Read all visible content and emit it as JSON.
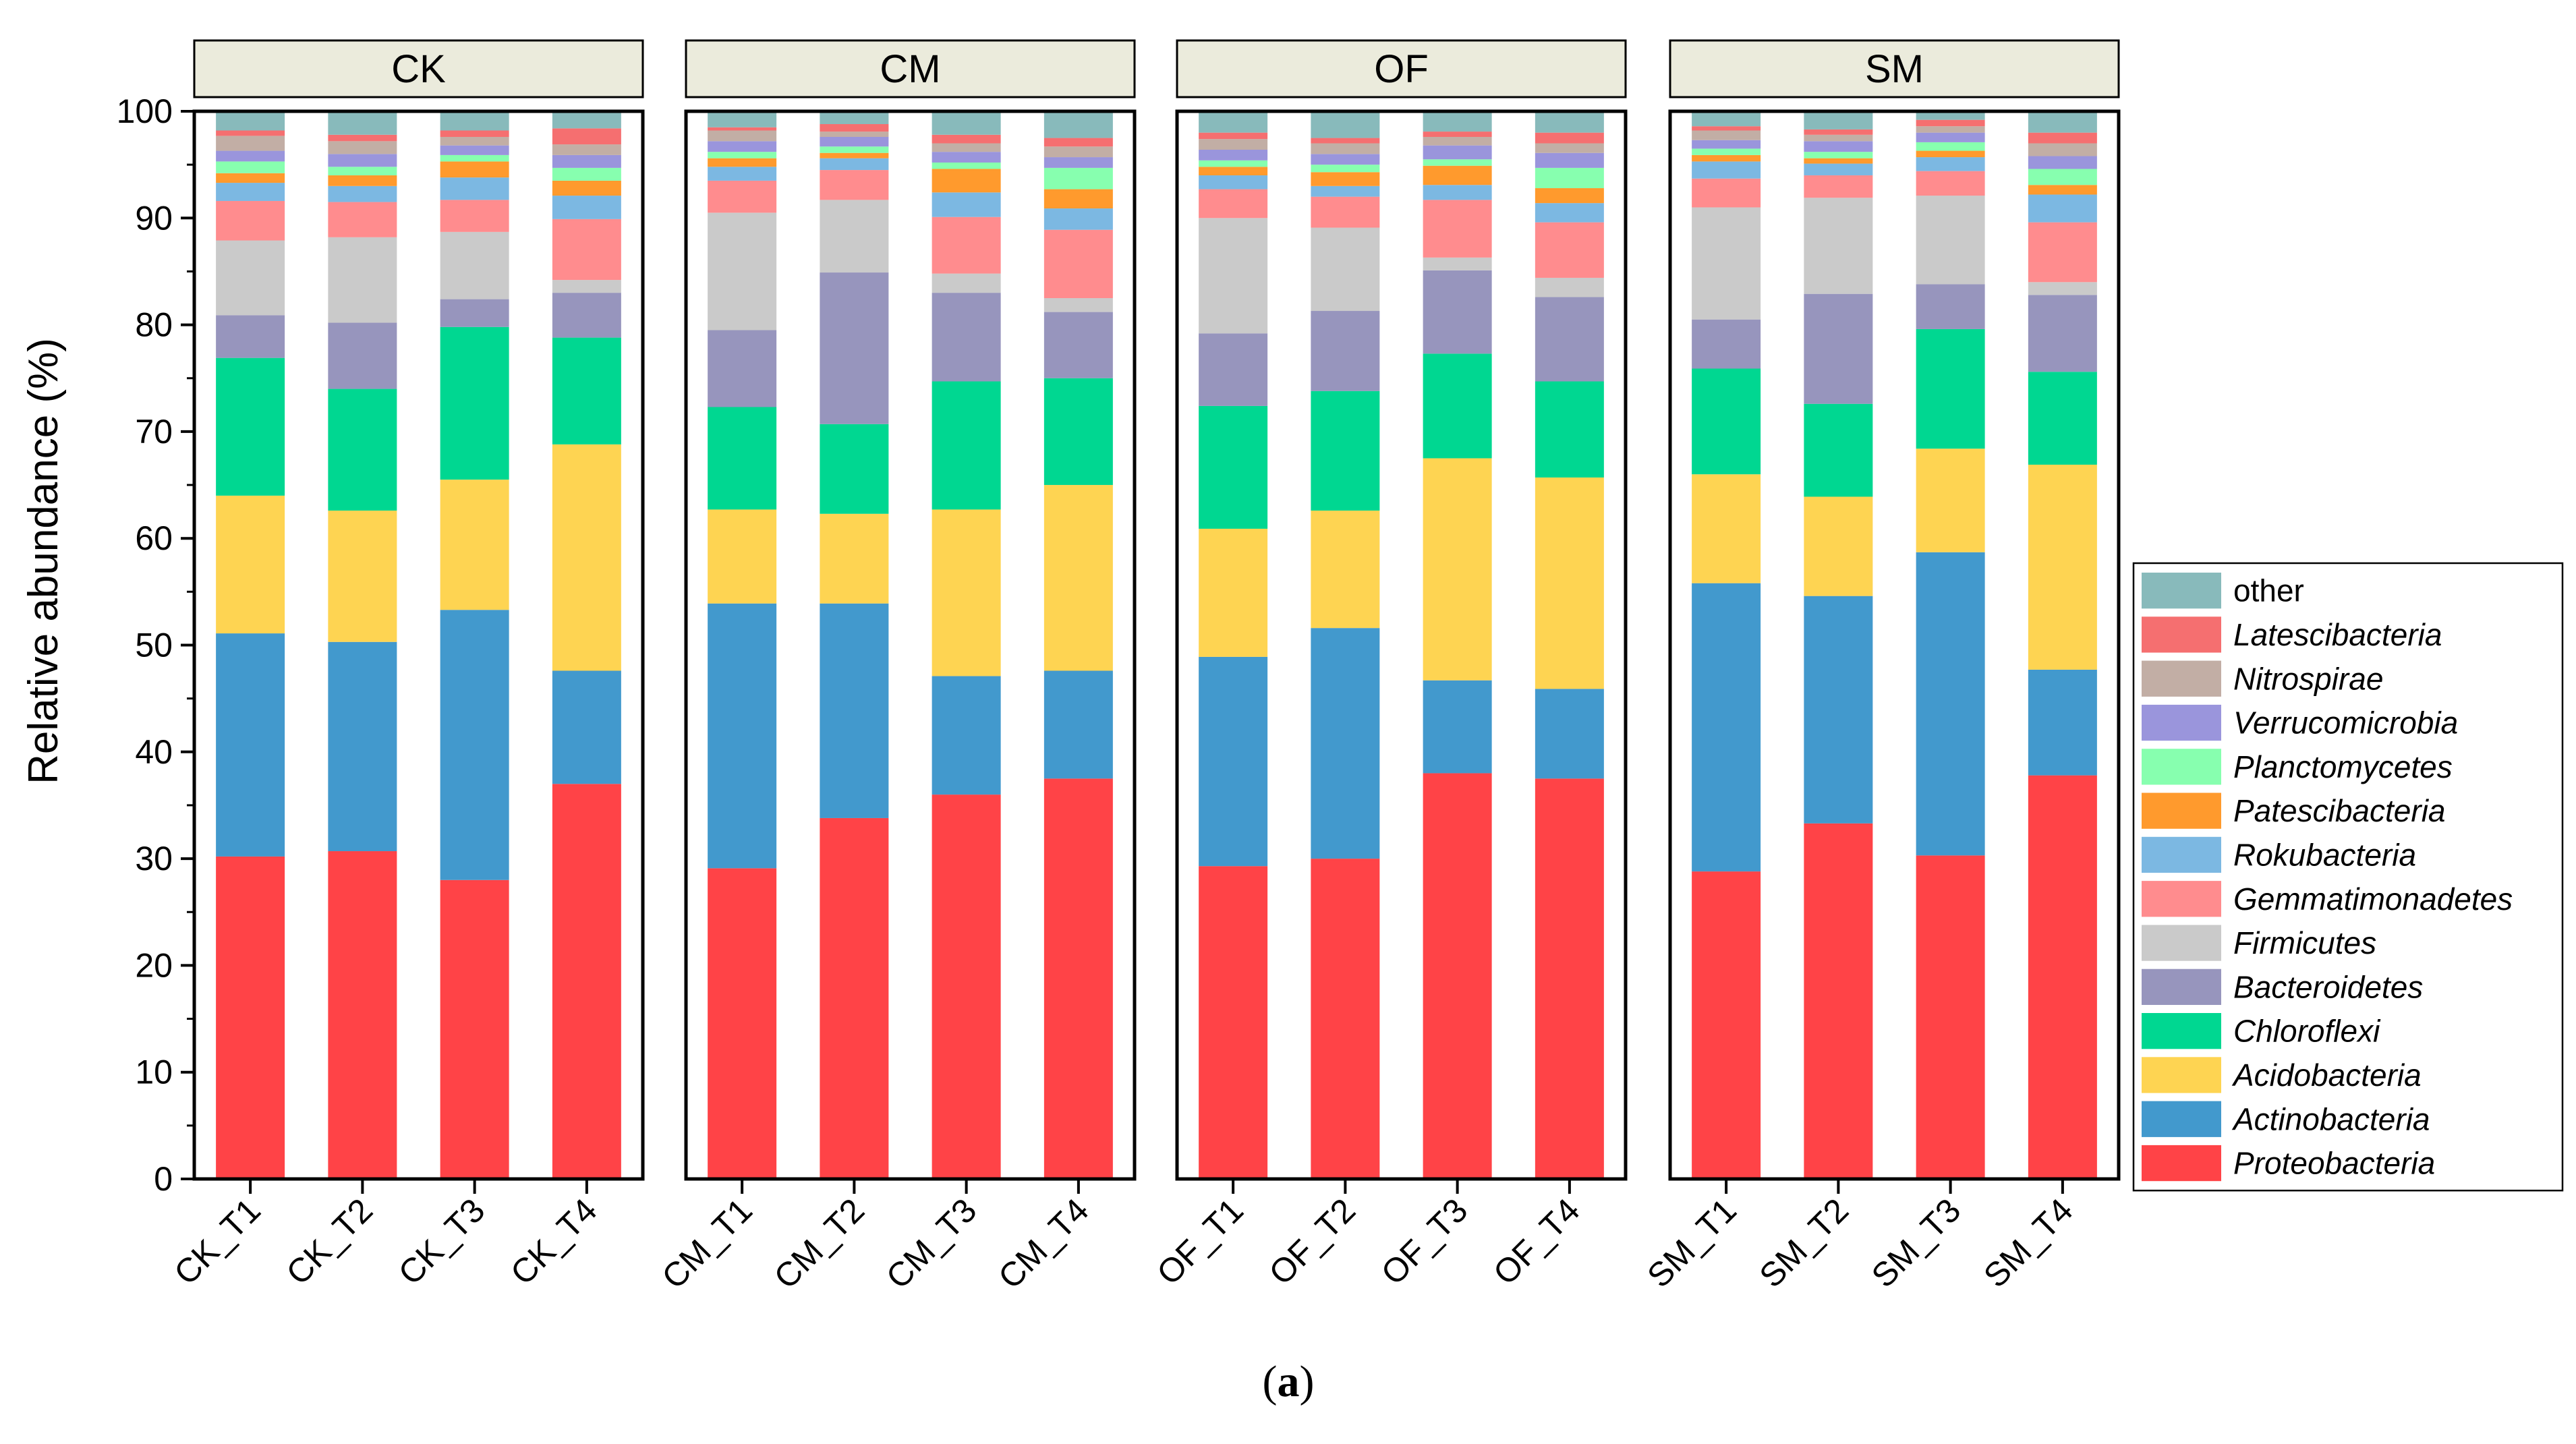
{
  "chart_data": {
    "type": "bar",
    "stacked": true,
    "ylabel": "Relative abundance (%)",
    "ylim": [
      0,
      100
    ],
    "yticks": [
      0,
      10,
      20,
      30,
      40,
      50,
      60,
      70,
      80,
      90,
      100
    ],
    "caption": {
      "open": "(",
      "letter": "a",
      "close": ")"
    },
    "legend_position": "right",
    "legend": [
      "other",
      "Latescibacteria",
      "Nitrospirae",
      "Verrucomicrobia",
      "Planctomycetes",
      "Patescibacteria",
      "Rokubacteria",
      "Gemmatimonadetes",
      "Firmicutes",
      "Bacteroidetes",
      "Chloroflexi",
      "Acidobacteria",
      "Actinobacteria",
      "Proteobacteria"
    ],
    "series_order_bottom_to_top": [
      "Proteobacteria",
      "Actinobacteria",
      "Acidobacteria",
      "Chloroflexi",
      "Bacteroidetes",
      "Firmicutes",
      "Gemmatimonadetes",
      "Rokubacteria",
      "Patescibacteria",
      "Planctomycetes",
      "Verrucomicrobia",
      "Nitrospirae",
      "Latescibacteria",
      "other"
    ],
    "italic": {
      "other": false,
      "Latescibacteria": true,
      "Nitrospirae": true,
      "Verrucomicrobia": true,
      "Planctomycetes": true,
      "Patescibacteria": true,
      "Rokubacteria": true,
      "Gemmatimonadetes": true,
      "Firmicutes": true,
      "Bacteroidetes": true,
      "Chloroflexi": true,
      "Acidobacteria": true,
      "Actinobacteria": true,
      "Proteobacteria": true
    },
    "colors": {
      "Proteobacteria": "#FF4347",
      "Actinobacteria": "#4299CD",
      "Acidobacteria": "#FED452",
      "Chloroflexi": "#00D791",
      "Bacteroidetes": "#9795BD",
      "Firmicutes": "#CACACA",
      "Gemmatimonadetes": "#FF8C8E",
      "Rokubacteria": "#7CB8E2",
      "Patescibacteria": "#FF9A2D",
      "Planctomycetes": "#87FFAF",
      "Verrucomicrobia": "#9A95DC",
      "Nitrospirae": "#C2AEA5",
      "Latescibacteria": "#F56F70",
      "other": "#88BABB"
    },
    "panels": [
      {
        "title": "CK",
        "categories": [
          "CK_T1",
          "CK_T2",
          "CK_T3",
          "CK_T4"
        ],
        "series": [
          {
            "name": "Proteobacteria",
            "values": [
              30.2,
              30.7,
              28.0,
              37.0
            ]
          },
          {
            "name": "Actinobacteria",
            "values": [
              20.9,
              19.6,
              25.3,
              10.6
            ]
          },
          {
            "name": "Acidobacteria",
            "values": [
              12.9,
              12.3,
              12.2,
              21.2
            ]
          },
          {
            "name": "Chloroflexi",
            "values": [
              12.9,
              11.4,
              14.3,
              10.0
            ]
          },
          {
            "name": "Bacteroidetes",
            "values": [
              4.0,
              6.2,
              2.6,
              4.2
            ]
          },
          {
            "name": "Firmicutes",
            "values": [
              7.0,
              8.0,
              6.3,
              1.2
            ]
          },
          {
            "name": "Gemmatimonadetes",
            "values": [
              3.7,
              3.3,
              3.0,
              5.7
            ]
          },
          {
            "name": "Rokubacteria",
            "values": [
              1.7,
              1.5,
              2.1,
              2.2
            ]
          },
          {
            "name": "Patescibacteria",
            "values": [
              0.9,
              1.0,
              1.5,
              1.4
            ]
          },
          {
            "name": "Planctomycetes",
            "values": [
              1.1,
              0.8,
              0.6,
              1.2
            ]
          },
          {
            "name": "Verrucomicrobia",
            "values": [
              1.0,
              1.2,
              0.9,
              1.2
            ]
          },
          {
            "name": "Nitrospirae",
            "values": [
              1.4,
              1.2,
              0.8,
              1.0
            ]
          },
          {
            "name": "Latescibacteria",
            "values": [
              0.5,
              0.6,
              0.6,
              1.5
            ]
          },
          {
            "name": "other",
            "values": [
              1.8,
              2.2,
              1.8,
              1.6
            ]
          }
        ]
      },
      {
        "title": "CM",
        "categories": [
          "CM_T1",
          "CM_T2",
          "CM_T3",
          "CM_T4"
        ],
        "series": [
          {
            "name": "Proteobacteria",
            "values": [
              29.1,
              33.8,
              36.0,
              37.5
            ]
          },
          {
            "name": "Actinobacteria",
            "values": [
              24.8,
              20.1,
              11.1,
              10.1
            ]
          },
          {
            "name": "Acidobacteria",
            "values": [
              8.8,
              8.4,
              15.6,
              17.4
            ]
          },
          {
            "name": "Chloroflexi",
            "values": [
              9.6,
              8.4,
              12.0,
              10.0
            ]
          },
          {
            "name": "Bacteroidetes",
            "values": [
              7.2,
              14.2,
              8.3,
              6.2
            ]
          },
          {
            "name": "Firmicutes",
            "values": [
              11.0,
              6.8,
              1.8,
              1.3
            ]
          },
          {
            "name": "Gemmatimonadetes",
            "values": [
              3.0,
              2.8,
              5.3,
              6.4
            ]
          },
          {
            "name": "Rokubacteria",
            "values": [
              1.3,
              1.1,
              2.3,
              2.0
            ]
          },
          {
            "name": "Patescibacteria",
            "values": [
              0.8,
              0.5,
              2.2,
              1.8
            ]
          },
          {
            "name": "Planctomycetes",
            "values": [
              0.6,
              0.6,
              0.6,
              2.0
            ]
          },
          {
            "name": "Verrucomicrobia",
            "values": [
              1.0,
              0.9,
              1.0,
              1.0
            ]
          },
          {
            "name": "Nitrospirae",
            "values": [
              1.0,
              0.5,
              0.8,
              1.0
            ]
          },
          {
            "name": "Latescibacteria",
            "values": [
              0.3,
              0.7,
              0.8,
              0.8
            ]
          },
          {
            "name": "other",
            "values": [
              1.5,
              1.2,
              2.2,
              2.5
            ]
          }
        ]
      },
      {
        "title": "OF",
        "categories": [
          "OF_T1",
          "OF_T2",
          "OF_T3",
          "OF_T4"
        ],
        "series": [
          {
            "name": "Proteobacteria",
            "values": [
              29.3,
              30.0,
              38.0,
              37.5
            ]
          },
          {
            "name": "Actinobacteria",
            "values": [
              19.6,
              21.6,
              8.7,
              8.4
            ]
          },
          {
            "name": "Acidobacteria",
            "values": [
              12.0,
              11.0,
              20.8,
              19.8
            ]
          },
          {
            "name": "Chloroflexi",
            "values": [
              11.5,
              11.2,
              9.8,
              9.0
            ]
          },
          {
            "name": "Bacteroidetes",
            "values": [
              6.8,
              7.5,
              7.8,
              7.9
            ]
          },
          {
            "name": "Firmicutes",
            "values": [
              10.8,
              7.8,
              1.2,
              1.8
            ]
          },
          {
            "name": "Gemmatimonadetes",
            "values": [
              2.7,
              2.9,
              5.4,
              5.2
            ]
          },
          {
            "name": "Rokubacteria",
            "values": [
              1.3,
              1.0,
              1.4,
              1.8
            ]
          },
          {
            "name": "Patescibacteria",
            "values": [
              0.8,
              1.3,
              1.8,
              1.4
            ]
          },
          {
            "name": "Planctomycetes",
            "values": [
              0.6,
              0.7,
              0.6,
              1.9
            ]
          },
          {
            "name": "Verrucomicrobia",
            "values": [
              1.0,
              1.0,
              1.3,
              1.4
            ]
          },
          {
            "name": "Nitrospirae",
            "values": [
              1.0,
              1.0,
              0.8,
              0.9
            ]
          },
          {
            "name": "Latescibacteria",
            "values": [
              0.6,
              0.5,
              0.5,
              1.0
            ]
          },
          {
            "name": "other",
            "values": [
              2.0,
              2.5,
              1.9,
              2.0
            ]
          }
        ]
      },
      {
        "title": "SM",
        "categories": [
          "SM_T1",
          "SM_T2",
          "SM_T3",
          "SM_T4"
        ],
        "series": [
          {
            "name": "Proteobacteria",
            "values": [
              28.8,
              33.3,
              30.3,
              37.8
            ]
          },
          {
            "name": "Actinobacteria",
            "values": [
              27.0,
              21.3,
              28.4,
              9.9
            ]
          },
          {
            "name": "Acidobacteria",
            "values": [
              10.2,
              9.3,
              9.7,
              19.2
            ]
          },
          {
            "name": "Chloroflexi",
            "values": [
              9.9,
              8.7,
              11.2,
              8.7
            ]
          },
          {
            "name": "Bacteroidetes",
            "values": [
              4.6,
              10.3,
              4.2,
              7.2
            ]
          },
          {
            "name": "Firmicutes",
            "values": [
              10.5,
              9.0,
              8.3,
              1.2
            ]
          },
          {
            "name": "Gemmatimonadetes",
            "values": [
              2.7,
              2.1,
              2.3,
              5.6
            ]
          },
          {
            "name": "Rokubacteria",
            "values": [
              1.6,
              1.1,
              1.3,
              2.6
            ]
          },
          {
            "name": "Patescibacteria",
            "values": [
              0.6,
              0.5,
              0.6,
              0.9
            ]
          },
          {
            "name": "Planctomycetes",
            "values": [
              0.6,
              0.6,
              0.8,
              1.5
            ]
          },
          {
            "name": "Verrucomicrobia",
            "values": [
              0.8,
              1.0,
              0.9,
              1.2
            ]
          },
          {
            "name": "Nitrospirae",
            "values": [
              0.9,
              0.6,
              0.6,
              1.2
            ]
          },
          {
            "name": "Latescibacteria",
            "values": [
              0.4,
              0.5,
              0.6,
              1.0
            ]
          },
          {
            "name": "other",
            "values": [
              1.4,
              1.7,
              0.8,
              2.0
            ]
          }
        ]
      }
    ]
  }
}
